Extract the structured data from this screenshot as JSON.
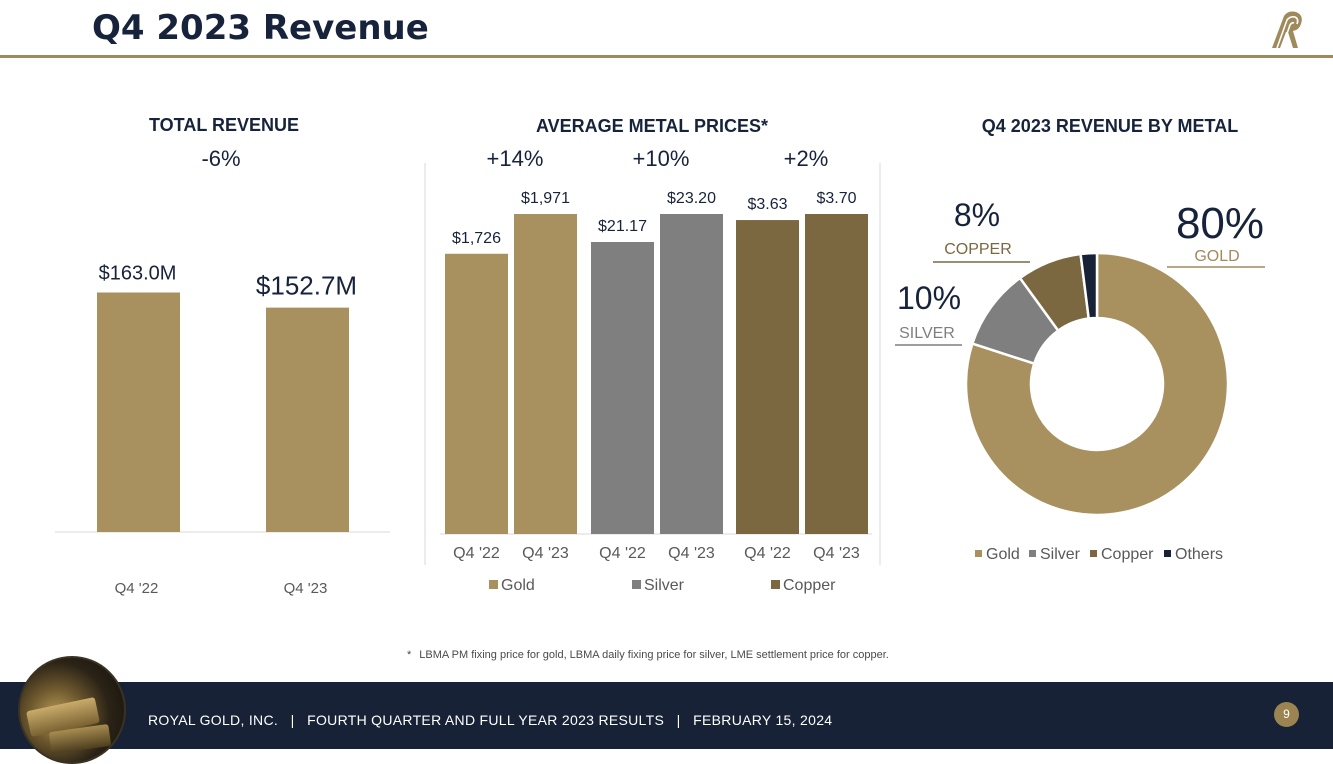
{
  "title": "Q4 2023 Revenue",
  "colors": {
    "navy": "#17233b",
    "gold": "#a9915f",
    "silver": "#7f7f7f",
    "copper": "#7b6841",
    "others": "#172236",
    "accent_line": "#a08a5c"
  },
  "chart_data": [
    {
      "type": "bar",
      "title": "TOTAL REVENUE",
      "change": "-6%",
      "categories": [
        "Q4 '22",
        "Q4 '23"
      ],
      "values": [
        163.0,
        152.7
      ],
      "value_labels": [
        "$163.0M",
        "$152.7M"
      ],
      "ylim": [
        0,
        245
      ]
    },
    {
      "type": "bar",
      "title": "AVERAGE METAL PRICES*",
      "groups": [
        {
          "name": "Gold",
          "change": "+14%",
          "categories": [
            "Q4 '22",
            "Q4 '23"
          ],
          "values": [
            1726,
            1971
          ],
          "value_labels": [
            "$1,726",
            "$1,971"
          ],
          "color": "#a9915f"
        },
        {
          "name": "Silver",
          "change": "+10%",
          "categories": [
            "Q4 '22",
            "Q4 '23"
          ],
          "values": [
            21.17,
            23.2
          ],
          "value_labels": [
            "$21.17",
            "$23.20"
          ],
          "color": "#7f7f7f"
        },
        {
          "name": "Copper",
          "change": "+2%",
          "categories": [
            "Q4 '22",
            "Q4 '23"
          ],
          "values": [
            3.63,
            3.7
          ],
          "value_labels": [
            "$3.63",
            "$3.70"
          ],
          "color": "#7b6841"
        }
      ],
      "legend": [
        "Gold",
        "Silver",
        "Copper"
      ]
    },
    {
      "type": "pie",
      "title": "Q4 2023 REVENUE BY METAL",
      "labels": [
        "Gold",
        "Silver",
        "Copper",
        "Others"
      ],
      "values": [
        80,
        10,
        8,
        2
      ],
      "colors": [
        "#a9915f",
        "#7f7f7f",
        "#7b6841",
        "#172236"
      ],
      "callouts": [
        {
          "pct": "80%",
          "name": "GOLD"
        },
        {
          "pct": "10%",
          "name": "SILVER"
        },
        {
          "pct": "8%",
          "name": "COPPER"
        }
      ],
      "legend": [
        "Gold",
        "Silver",
        "Copper",
        "Others"
      ]
    }
  ],
  "footnote": {
    "marker": "*",
    "text": "LBMA PM fixing price for gold, LBMA daily fixing price for silver, LME settlement price for copper."
  },
  "footer": {
    "text": "ROYAL GOLD, INC.   |   FOURTH QUARTER AND FULL YEAR 2023 RESULTS   |   FEBRUARY 15, 2024",
    "page_number": "9"
  }
}
